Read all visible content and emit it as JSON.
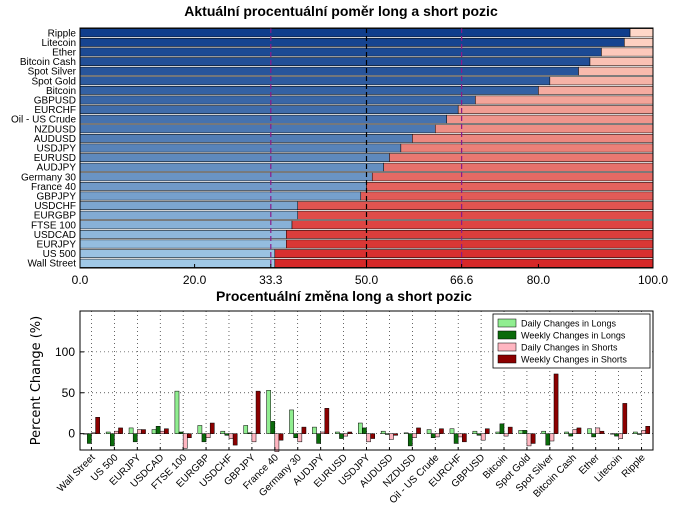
{
  "chart_data": [
    {
      "type": "bar",
      "orientation": "horizontal-stacked",
      "title": "Aktuální procentuální poměr long a short pozic",
      "categories": [
        "Ripple",
        "Litecoin",
        "Ether",
        "Bitcoin Cash",
        "Spot Silver",
        "Spot Gold",
        "Bitcoin",
        "GBPUSD",
        "EURCHF",
        "Oil - US Crude",
        "NZDUSD",
        "AUDUSD",
        "USDJPY",
        "EURUSD",
        "AUDJPY",
        "Germany 30",
        "France 40",
        "GBPJPY",
        "USDCHF",
        "EURGBP",
        "FTSE 100",
        "USDCAD",
        "EURJPY",
        "US 500",
        "Wall Street"
      ],
      "long_pct": [
        96,
        95,
        91,
        89,
        87,
        82,
        80,
        69,
        66,
        64,
        62,
        58,
        56,
        54,
        53,
        51,
        50,
        49,
        38,
        38,
        37,
        36,
        36,
        34,
        34
      ],
      "xlim": [
        0,
        100
      ],
      "xticks": [
        "0.0",
        "20.0",
        "33.3",
        "50.0",
        "66.6",
        "80.0",
        "100.0"
      ],
      "xtick_values": [
        0,
        20,
        33.3,
        50,
        66.6,
        80,
        100
      ],
      "highlight_ticks": [
        "33.3",
        "66.6"
      ],
      "reference_lines": [
        {
          "x": 33.3,
          "color": "#8b1a8b",
          "style": "dashed"
        },
        {
          "x": 50,
          "color": "#000000",
          "style": "dashed"
        },
        {
          "x": 66.6,
          "color": "#8b1a8b",
          "style": "dashed"
        }
      ],
      "colors": {
        "long": "blue gradient (light to dark)",
        "short": "red gradient (dark to light)"
      }
    },
    {
      "type": "bar",
      "orientation": "vertical-grouped",
      "title": "Procentuální změna long a short pozic",
      "ylabel": "Percent Change (%)",
      "ylim": [
        -20,
        150
      ],
      "yticks": [
        0,
        50,
        100
      ],
      "grid": true,
      "legend_placement": "top-right",
      "categories": [
        "Wall Street",
        "US 500",
        "EURJPY",
        "USDCAD",
        "FTSE 100",
        "EURGBP",
        "USDCHF",
        "GBPJPY",
        "France 40",
        "Germany 30",
        "AUDJPY",
        "EURUSD",
        "USDJPY",
        "AUDUSD",
        "NZDUSD",
        "Oil - US Crude",
        "EURCHF",
        "GBPUSD",
        "Bitcoin",
        "Spot Gold",
        "Spot Silver",
        "Bitcoin Cash",
        "Ether",
        "Litecoin",
        "Ripple"
      ],
      "series": [
        {
          "name": "Daily Changes in Longs",
          "color": "#90ee90",
          "values": [
            0,
            2,
            7,
            5,
            52,
            10,
            3,
            10,
            53,
            29,
            8,
            2,
            13,
            3,
            1,
            5,
            6,
            3,
            2,
            4,
            3,
            2,
            6,
            0,
            2
          ]
        },
        {
          "name": "Weekly Changes in Longs",
          "color": "#0a6b0a",
          "values": [
            -12,
            -15,
            -10,
            9,
            2,
            -10,
            -2,
            1,
            15,
            -5,
            -12,
            -6,
            7,
            -1,
            -15,
            -5,
            -12,
            -2,
            12,
            4,
            -14,
            -3,
            -4,
            -3,
            -1
          ]
        },
        {
          "name": "Daily Changes in Shorts",
          "color": "#ffb6c1",
          "values": [
            1,
            3,
            5,
            3,
            -18,
            -5,
            -6,
            -10,
            -22,
            -10,
            2,
            -3,
            -10,
            -7,
            -5,
            -4,
            -4,
            -8,
            -3,
            -15,
            -9,
            5,
            7,
            -6,
            4
          ]
        },
        {
          "name": "Weekly Changes in Shorts",
          "color": "#8b0000",
          "values": [
            20,
            7,
            5,
            6,
            -5,
            13,
            -14,
            52,
            -8,
            8,
            31,
            2,
            -6,
            -2,
            7,
            6,
            -10,
            6,
            8,
            -12,
            73,
            7,
            3,
            37,
            9
          ]
        }
      ]
    }
  ]
}
